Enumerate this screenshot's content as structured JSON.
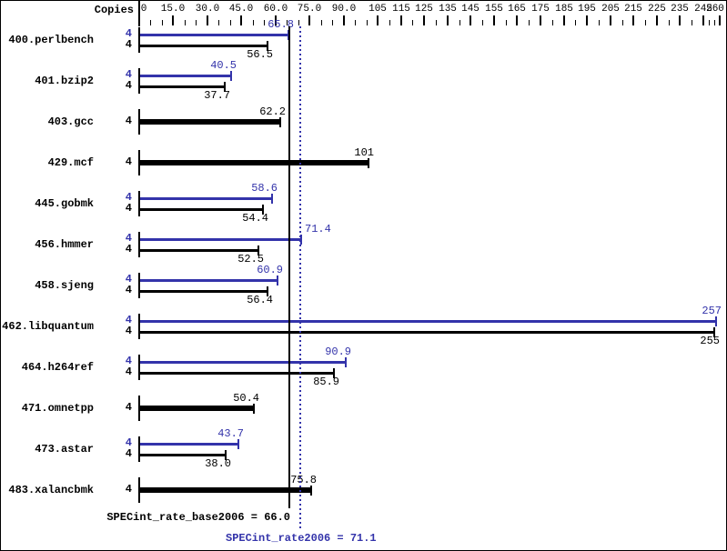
{
  "chart_data": {
    "type": "bar",
    "orientation": "horizontal",
    "title": "",
    "copies_header": "Copies",
    "x_range": [
      0,
      260
    ],
    "x_axis": {
      "minor_tick_step": 5,
      "labeled_ticks": [
        {
          "v": 0,
          "label": "0"
        },
        {
          "v": 15,
          "label": "15.0"
        },
        {
          "v": 30,
          "label": "30.0"
        },
        {
          "v": 45,
          "label": "45.0"
        },
        {
          "v": 60,
          "label": "60.0"
        },
        {
          "v": 75,
          "label": "75.0"
        },
        {
          "v": 90,
          "label": "90.0"
        },
        {
          "v": 105,
          "label": "105"
        },
        {
          "v": 115,
          "label": "115"
        },
        {
          "v": 125,
          "label": "125"
        },
        {
          "v": 135,
          "label": "135"
        },
        {
          "v": 145,
          "label": "145"
        },
        {
          "v": 155,
          "label": "155"
        },
        {
          "v": 165,
          "label": "165"
        },
        {
          "v": 175,
          "label": "175"
        },
        {
          "v": 185,
          "label": "185"
        },
        {
          "v": 195,
          "label": "195"
        },
        {
          "v": 205,
          "label": "205"
        },
        {
          "v": 215,
          "label": "215"
        },
        {
          "v": 225,
          "label": "225"
        },
        {
          "v": 235,
          "label": "235"
        },
        {
          "v": 245,
          "label": "245"
        },
        {
          "v": 260,
          "label": "260"
        }
      ]
    },
    "series_colors": {
      "peak": "#3333aa",
      "base": "#000000"
    },
    "benchmarks": [
      {
        "name": "400.perlbench",
        "bars": [
          {
            "series": "peak",
            "copies": "4",
            "value": 65.8,
            "label": "65.8"
          },
          {
            "series": "base",
            "copies": "4",
            "value": 56.5,
            "label": "56.5"
          }
        ]
      },
      {
        "name": "401.bzip2",
        "bars": [
          {
            "series": "peak",
            "copies": "4",
            "value": 40.5,
            "label": "40.5"
          },
          {
            "series": "base",
            "copies": "4",
            "value": 37.7,
            "label": "37.7"
          }
        ]
      },
      {
        "name": "403.gcc",
        "bars": [
          {
            "series": "base",
            "copies": "4",
            "value": 62.2,
            "label": "62.2"
          }
        ]
      },
      {
        "name": "429.mcf",
        "bars": [
          {
            "series": "base",
            "copies": "4",
            "value": 101,
            "label": "101"
          }
        ]
      },
      {
        "name": "445.gobmk",
        "bars": [
          {
            "series": "peak",
            "copies": "4",
            "value": 58.6,
            "label": "58.6"
          },
          {
            "series": "base",
            "copies": "4",
            "value": 54.4,
            "label": "54.4"
          }
        ]
      },
      {
        "name": "456.hmmer",
        "bars": [
          {
            "series": "peak",
            "copies": "4",
            "value": 71.4,
            "label": "71.4",
            "label_side": "right"
          },
          {
            "series": "base",
            "copies": "4",
            "value": 52.5,
            "label": "52.5"
          }
        ]
      },
      {
        "name": "458.sjeng",
        "bars": [
          {
            "series": "peak",
            "copies": "4",
            "value": 60.9,
            "label": "60.9"
          },
          {
            "series": "base",
            "copies": "4",
            "value": 56.4,
            "label": "56.4"
          }
        ]
      },
      {
        "name": "462.libquantum",
        "bars": [
          {
            "series": "peak",
            "copies": "4",
            "value": 257,
            "label": "257"
          },
          {
            "series": "base",
            "copies": "4",
            "value": 255,
            "label": "255"
          }
        ]
      },
      {
        "name": "464.h264ref",
        "bars": [
          {
            "series": "peak",
            "copies": "4",
            "value": 90.9,
            "label": "90.9"
          },
          {
            "series": "base",
            "copies": "4",
            "value": 85.9,
            "label": "85.9"
          }
        ]
      },
      {
        "name": "471.omnetpp",
        "bars": [
          {
            "series": "base",
            "copies": "4",
            "value": 50.4,
            "label": "50.4"
          }
        ]
      },
      {
        "name": "473.astar",
        "bars": [
          {
            "series": "peak",
            "copies": "4",
            "value": 43.7,
            "label": "43.7"
          },
          {
            "series": "base",
            "copies": "4",
            "value": 38.0,
            "label": "38.0"
          }
        ]
      },
      {
        "name": "483.xalancbmk",
        "bars": [
          {
            "series": "base",
            "copies": "4",
            "value": 75.8,
            "label": "75.8"
          }
        ]
      }
    ],
    "reference_lines": [
      {
        "series": "base",
        "value": 66.0,
        "style": "solid"
      },
      {
        "series": "peak",
        "value": 71.1,
        "style": "dotted"
      }
    ],
    "summary": [
      {
        "series": "base",
        "text": "SPECint_rate_base2006 = 66.0",
        "value": 66.0
      },
      {
        "series": "peak",
        "text": "SPECint_rate2006 = 71.1",
        "value": 71.1
      }
    ]
  }
}
